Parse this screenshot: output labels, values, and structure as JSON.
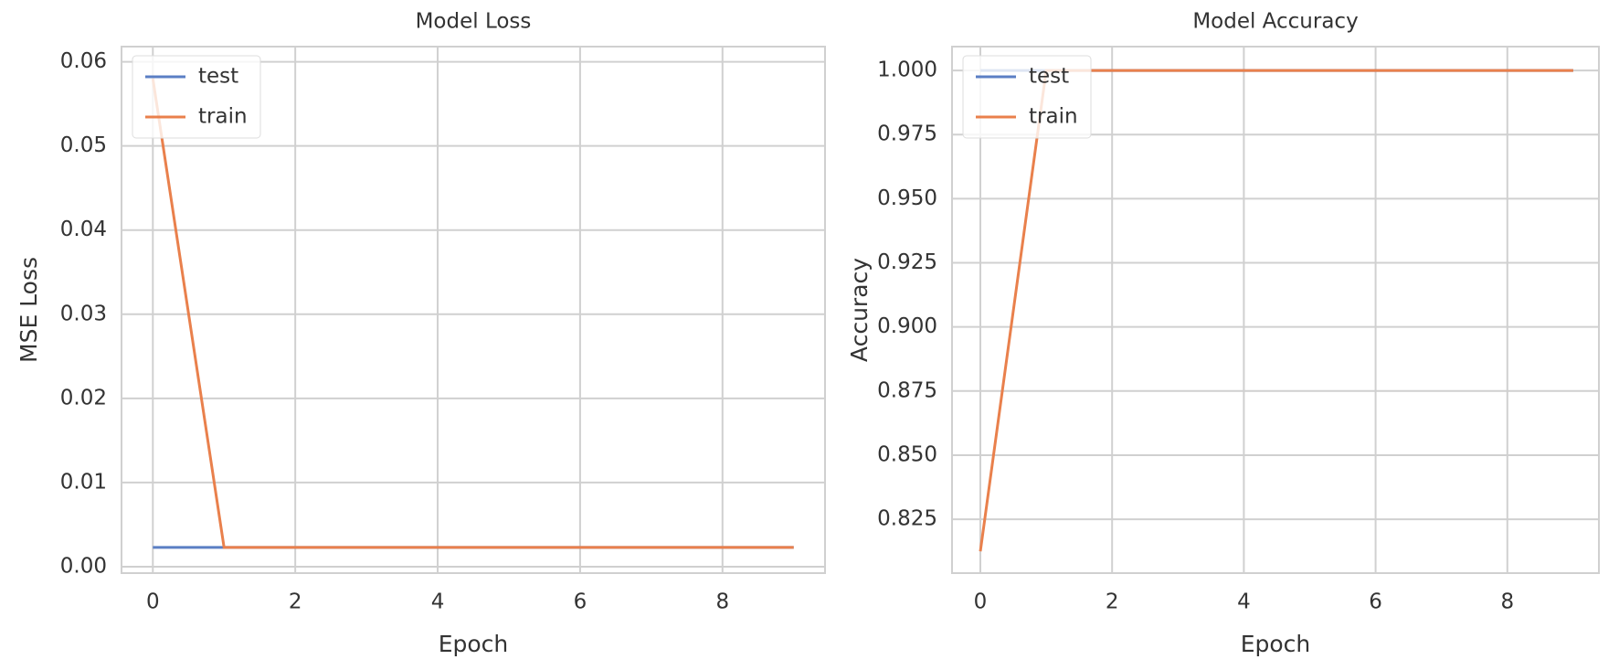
{
  "chart_data": [
    {
      "type": "line",
      "title": "Model Loss",
      "xlabel": "Epoch",
      "ylabel": "MSE Loss",
      "x": [
        0,
        1,
        2,
        3,
        4,
        5,
        6,
        7,
        8,
        9
      ],
      "series": [
        {
          "name": "test",
          "color": "#5b7fc4",
          "values": [
            0.0023,
            0.0023,
            0.0023,
            0.0023,
            0.0023,
            0.0023,
            0.0023,
            0.0023,
            0.0023,
            0.0023
          ]
        },
        {
          "name": "train",
          "color": "#e9804c",
          "values": [
            0.058,
            0.0023,
            0.0023,
            0.0023,
            0.0023,
            0.0023,
            0.0023,
            0.0023,
            0.0023,
            0.0023
          ]
        }
      ],
      "xlim": [
        -0.44,
        9.44
      ],
      "xticks": [
        0,
        2,
        4,
        6,
        8
      ],
      "ylim": [
        -0.00076,
        0.0618
      ],
      "yticks": [
        {
          "value": 0,
          "label": "0.00"
        },
        {
          "value": 0.01,
          "label": "0.01"
        },
        {
          "value": 0.02,
          "label": "0.02"
        },
        {
          "value": 0.03,
          "label": "0.03"
        },
        {
          "value": 0.04,
          "label": "0.04"
        },
        {
          "value": 0.05,
          "label": "0.05"
        },
        {
          "value": 0.06,
          "label": "0.06"
        }
      ],
      "grid": true,
      "legend": "upper-left"
    },
    {
      "type": "line",
      "title": "Model Accuracy",
      "xlabel": "Epoch",
      "ylabel": "Accuracy",
      "x": [
        0,
        1,
        2,
        3,
        4,
        5,
        6,
        7,
        8,
        9
      ],
      "series": [
        {
          "name": "test",
          "color": "#5b7fc4",
          "values": [
            1,
            1,
            1,
            1,
            1,
            1,
            1,
            1,
            1,
            1
          ]
        },
        {
          "name": "train",
          "color": "#e9804c",
          "values": [
            0.8125,
            1,
            1,
            1,
            1,
            1,
            1,
            1,
            1,
            1
          ]
        }
      ],
      "xlim": [
        -0.43,
        9.39
      ],
      "xticks": [
        0,
        2,
        4,
        6,
        8
      ],
      "ylim": [
        0.804,
        1.0093
      ],
      "yticks": [
        {
          "value": 0.825,
          "label": "0.825"
        },
        {
          "value": 0.85,
          "label": "0.850"
        },
        {
          "value": 0.875,
          "label": "0.875"
        },
        {
          "value": 0.9,
          "label": "0.900"
        },
        {
          "value": 0.925,
          "label": "0.925"
        },
        {
          "value": 0.95,
          "label": "0.950"
        },
        {
          "value": 0.975,
          "label": "0.975"
        },
        {
          "value": 1,
          "label": "1.000"
        }
      ],
      "grid": true,
      "legend": "upper-left"
    }
  ]
}
